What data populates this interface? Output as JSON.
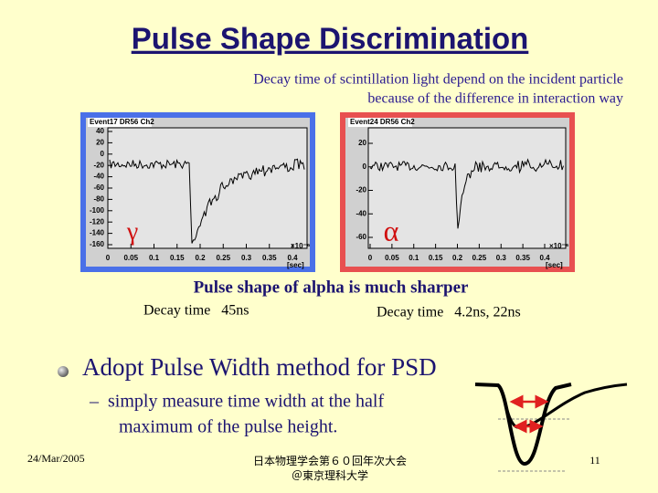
{
  "title": "Pulse Shape Discrimination",
  "subtitle": [
    "Decay time of scintillation light depend on the incident particle",
    "because of the difference in interaction way"
  ],
  "plots": [
    {
      "title": "Event17 DR56 Ch2",
      "symbol": "γ",
      "yticks": [
        "40",
        "20",
        "0",
        "-20",
        "-40",
        "-60",
        "-80",
        "-100",
        "-120",
        "-140",
        "-160"
      ],
      "xticks": [
        "0",
        "0.05",
        "0.1",
        "0.15",
        "0.2",
        "0.25",
        "0.3",
        "0.35",
        "0.4"
      ],
      "xscale": "×10⁻⁶",
      "xunit": "[sec]"
    },
    {
      "title": "Event24 DR56 Ch2",
      "symbol": "α",
      "yticks": [
        "20",
        "0",
        "-20",
        "-40",
        "-60"
      ],
      "xticks": [
        "0",
        "0.05",
        "0.1",
        "0.15",
        "0.2",
        "0.25",
        "0.3",
        "0.35",
        "0.4"
      ],
      "xscale": "×10⁻⁶",
      "xunit": "[sec]"
    }
  ],
  "caption": "Pulse shape of alpha is much sharper",
  "decay_times": [
    "Decay time   45ns",
    "Decay time   4.2ns, 22ns"
  ],
  "bullet": "Adopt Pulse Width method for PSD",
  "sub_bullet": [
    "–  simply measure time width at the half",
    "maximum of the pulse height."
  ],
  "footer": {
    "date": "24/Mar/2005",
    "conference": [
      "日本物理学会第６０回年次大会",
      "＠東京理科大学"
    ],
    "page": "11"
  }
}
